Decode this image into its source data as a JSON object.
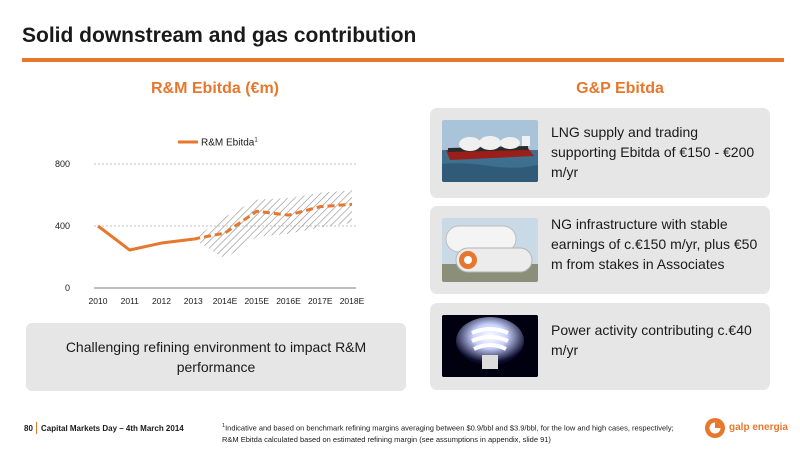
{
  "slide": {
    "title": "Solid downstream and gas contribution"
  },
  "rm_section": {
    "heading": "R&M Ebitda (€m)",
    "callout": "Challenging refining environment to impact R&M performance"
  },
  "gp_section": {
    "heading": "G&P Ebitda",
    "cards": [
      {
        "text": "LNG supply and trading supporting Ebitda of €150 - €200 m/yr",
        "image": "lng-tanker-ship"
      },
      {
        "text": "NG infrastructure with stable earnings of c.€150 m/yr, plus €50 m from stakes in Associates",
        "image": "gas-storage-tanks"
      },
      {
        "text": "Power activity contributing c.€40 m/yr",
        "image": "light-bulb"
      }
    ]
  },
  "footer": {
    "page_number": "80",
    "event": "Capital Markets Day – 4th March 2014",
    "footnote_marker": "1",
    "footnote": "Indicative and based on benchmark refining margins averaging between $0.9/bbl and $3.9/bbl, for the low and high cases, respectively; R&M Ebitda calculated based on estimated refining margin (see assumptions in appendix, slide 91)",
    "logo_text": "galp energia"
  },
  "colors": {
    "accent": "#e8772e",
    "card_background": "#e6e6e6",
    "range_hatch": "#8c8c8c"
  },
  "chart_data": {
    "type": "line",
    "categories": [
      "2010",
      "2011",
      "2012",
      "2013",
      "2014E",
      "2015E",
      "2016E",
      "2017E",
      "2018E"
    ],
    "series": [
      {
        "name": "R&M Ebitda",
        "name_superscript": "1",
        "values": [
          400,
          245,
          290,
          315,
          355,
          495,
          470,
          525,
          540
        ],
        "dashed_from_index": 3,
        "color": "#e8772e"
      }
    ],
    "range_band": {
      "description": "hatched range between low and high refining margin cases",
      "low": [
        null,
        null,
        null,
        315,
        190,
        330,
        350,
        390,
        420
      ],
      "high": [
        null,
        null,
        null,
        315,
        460,
        570,
        580,
        615,
        630
      ]
    },
    "yticks": [
      0,
      400,
      800
    ],
    "ylim": [
      0,
      800
    ],
    "grid": true,
    "legend": "top-left"
  }
}
